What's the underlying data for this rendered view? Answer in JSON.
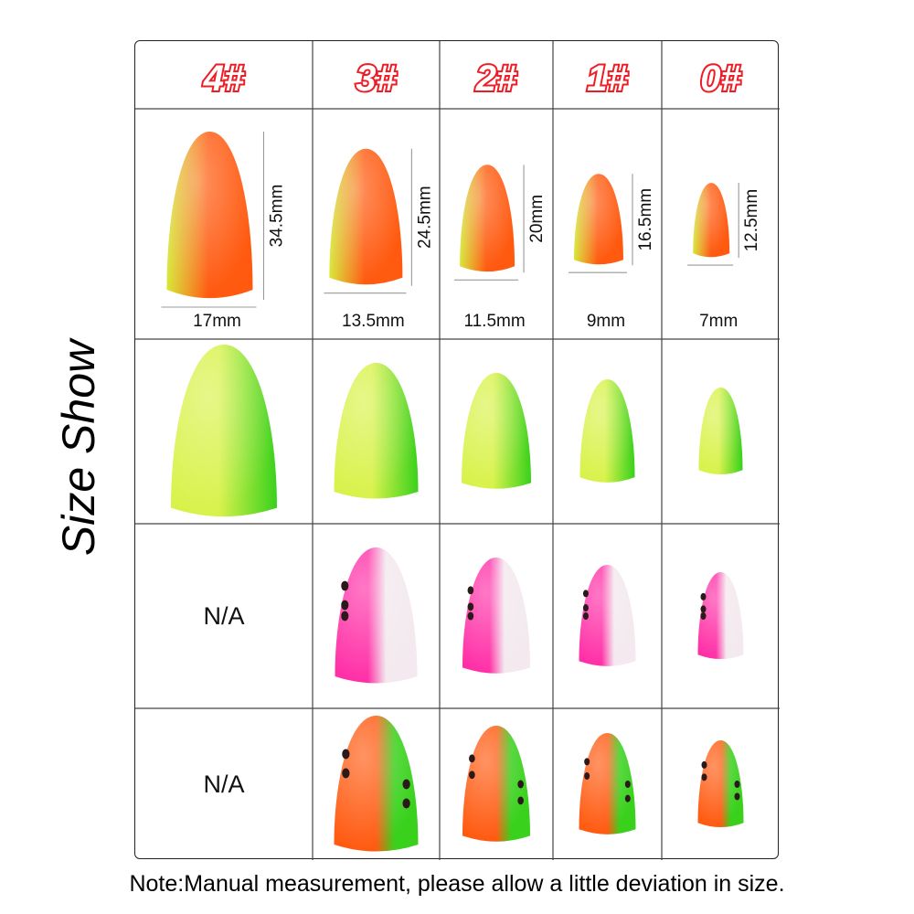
{
  "side_title": "Size Show",
  "sizes": [
    {
      "label": "4#",
      "length": "34.5mm",
      "width": "17mm"
    },
    {
      "label": "3#",
      "length": "24.5mm",
      "width": "13.5mm"
    },
    {
      "label": "2#",
      "length": "20mm",
      "width": "11.5mm"
    },
    {
      "label": "1#",
      "length": "16.5mm",
      "width": "9mm"
    },
    {
      "label": "0#",
      "length": "12.5mm",
      "width": "7mm"
    }
  ],
  "rows": [
    {
      "style": "orange-yellow",
      "cells": [
        true,
        true,
        true,
        true,
        true
      ]
    },
    {
      "style": "green-yellow",
      "cells": [
        true,
        true,
        true,
        true,
        true
      ]
    },
    {
      "style": "pink-white-dots",
      "cells": [
        "N/A",
        true,
        true,
        true,
        true
      ]
    },
    {
      "style": "orange-green-dots",
      "cells": [
        "N/A",
        true,
        true,
        true,
        true
      ]
    }
  ],
  "colors": {
    "header_text": "#ee1c24",
    "orange": "#ff5a10",
    "yellow": "#d8e83a",
    "green": "#39d11c",
    "lime": "#d9f24a",
    "pink": "#ff2fa6",
    "white": "#f3e9ee",
    "dot": "#2a1a1a"
  },
  "note": "Note:Manual measurement, please allow a little deviation in size."
}
